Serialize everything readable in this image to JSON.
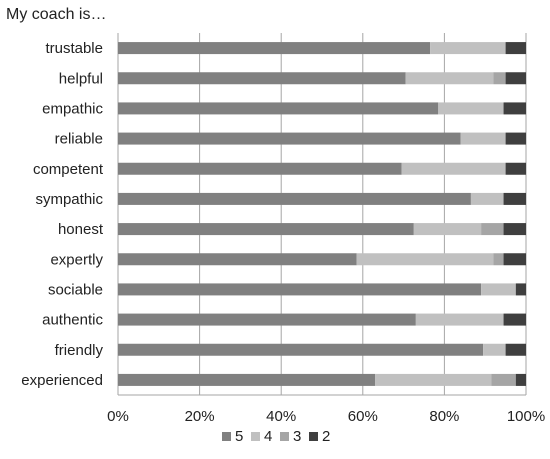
{
  "chart_data": {
    "type": "bar",
    "orientation": "horizontal",
    "stacked": true,
    "title": "My coach is…",
    "categories": [
      "trustable",
      "helpful",
      "empathic",
      "reliable",
      "competent",
      "sympathic",
      "honest",
      "expertly",
      "sociable",
      "authentic",
      "friendly",
      "experienced"
    ],
    "series": [
      {
        "name": "5",
        "color": "#808080",
        "values": [
          76.5,
          70.5,
          78.5,
          84,
          69.5,
          86.5,
          72.5,
          58.5,
          89,
          73,
          89.5,
          63
        ]
      },
      {
        "name": "4",
        "color": "#c0c0c0",
        "values": [
          18.5,
          21.5,
          16,
          11,
          25.5,
          8,
          16.5,
          33.5,
          8.5,
          21.5,
          5.5,
          28.5
        ]
      },
      {
        "name": "3",
        "color": "#a5a5a5",
        "values": [
          0,
          3,
          0,
          0,
          0,
          0,
          5.5,
          2.5,
          0,
          0,
          0,
          6
        ]
      },
      {
        "name": "2",
        "color": "#3f3f3f",
        "values": [
          5,
          5,
          5.5,
          5,
          5,
          5.5,
          5.5,
          5.5,
          2.5,
          5.5,
          5,
          2.5
        ]
      }
    ],
    "x_ticks": [
      "0%",
      "20%",
      "40%",
      "60%",
      "80%",
      "100%"
    ],
    "xlim": [
      0,
      100
    ],
    "grid": "vertical",
    "legend": "bottom"
  }
}
